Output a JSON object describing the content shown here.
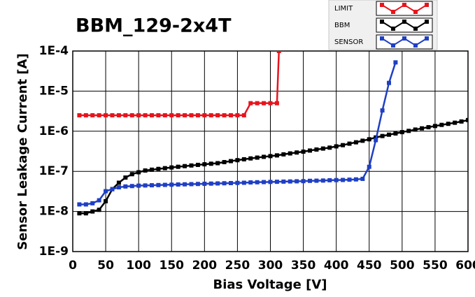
{
  "chart_data": {
    "type": "line",
    "title": "BBM_129-2x4T",
    "x_label": "Bias Voltage [V]",
    "y_label": "Sensor Leakage Current [A]",
    "log_y": true,
    "grid": true,
    "legend": "top-right",
    "xlim": [
      0,
      600
    ],
    "xticks": [
      0,
      50,
      100,
      150,
      200,
      250,
      300,
      350,
      400,
      450,
      500,
      550,
      600
    ],
    "ylim": [
      1e-09,
      0.0001
    ],
    "yticks": [
      {
        "value": 1e-09,
        "label": "1E-9"
      },
      {
        "value": 1e-08,
        "label": "1E-8"
      },
      {
        "value": 1e-07,
        "label": "1E-7"
      },
      {
        "value": 1e-06,
        "label": "1E-6"
      },
      {
        "value": 1e-05,
        "label": "1E-5"
      },
      {
        "value": 0.0001,
        "label": "1E-4"
      }
    ],
    "series": [
      {
        "name": "LIMIT",
        "color": "#e8141c",
        "x": [
          10,
          20,
          30,
          40,
          50,
          60,
          70,
          80,
          90,
          100,
          110,
          120,
          130,
          140,
          150,
          160,
          170,
          180,
          190,
          200,
          210,
          220,
          230,
          240,
          250,
          260,
          270,
          280,
          290,
          300,
          310,
          313
        ],
        "values": [
          2.5e-06,
          2.5e-06,
          2.5e-06,
          2.5e-06,
          2.5e-06,
          2.5e-06,
          2.5e-06,
          2.5e-06,
          2.5e-06,
          2.5e-06,
          2.5e-06,
          2.5e-06,
          2.5e-06,
          2.5e-06,
          2.5e-06,
          2.5e-06,
          2.5e-06,
          2.5e-06,
          2.5e-06,
          2.5e-06,
          2.5e-06,
          2.5e-06,
          2.5e-06,
          2.5e-06,
          2.5e-06,
          2.5e-06,
          5e-06,
          5e-06,
          5e-06,
          5e-06,
          5e-06,
          0.0001
        ]
      },
      {
        "name": "BBM",
        "color": "#000000",
        "x": [
          10,
          20,
          30,
          40,
          50,
          60,
          70,
          80,
          90,
          100,
          110,
          120,
          130,
          140,
          150,
          160,
          170,
          180,
          190,
          200,
          210,
          220,
          230,
          240,
          250,
          260,
          270,
          280,
          290,
          300,
          310,
          320,
          330,
          340,
          350,
          360,
          370,
          380,
          390,
          400,
          410,
          420,
          430,
          440,
          450,
          460,
          470,
          480,
          490,
          500,
          510,
          520,
          530,
          540,
          550,
          560,
          570,
          580,
          590,
          600
        ],
        "values": [
          9e-09,
          9e-09,
          1e-08,
          1.1e-08,
          1.8e-08,
          3.6e-08,
          5.2e-08,
          7e-08,
          8.5e-08,
          9.5e-08,
          1.05e-07,
          1.1e-07,
          1.15e-07,
          1.2e-07,
          1.25e-07,
          1.3e-07,
          1.35e-07,
          1.4e-07,
          1.45e-07,
          1.5e-07,
          1.55e-07,
          1.6e-07,
          1.7e-07,
          1.8e-07,
          1.9e-07,
          2e-07,
          2.1e-07,
          2.2e-07,
          2.3e-07,
          2.4e-07,
          2.5e-07,
          2.65e-07,
          2.8e-07,
          2.95e-07,
          3.1e-07,
          3.3e-07,
          3.5e-07,
          3.7e-07,
          3.9e-07,
          4.2e-07,
          4.5e-07,
          4.9e-07,
          5.3e-07,
          5.8e-07,
          6.3e-07,
          7e-07,
          7.6e-07,
          8.2e-07,
          8.8e-07,
          9.5e-07,
          1.02e-06,
          1.1e-06,
          1.18e-06,
          1.26e-06,
          1.35e-06,
          1.44e-06,
          1.53e-06,
          1.63e-06,
          1.75e-06,
          1.9e-06
        ]
      },
      {
        "name": "SENSOR",
        "color": "#1f3fc4",
        "x": [
          10,
          20,
          30,
          40,
          50,
          60,
          70,
          80,
          90,
          100,
          110,
          120,
          130,
          140,
          150,
          160,
          170,
          180,
          190,
          200,
          210,
          220,
          230,
          240,
          250,
          260,
          270,
          280,
          290,
          300,
          310,
          320,
          330,
          340,
          350,
          360,
          370,
          380,
          390,
          400,
          410,
          420,
          430,
          440,
          450,
          460,
          470,
          480,
          490
        ],
        "values": [
          1.5e-08,
          1.5e-08,
          1.6e-08,
          1.9e-08,
          3.2e-08,
          3.6e-08,
          4e-08,
          4.2e-08,
          4.3e-08,
          4.4e-08,
          4.45e-08,
          4.5e-08,
          4.55e-08,
          4.6e-08,
          4.65e-08,
          4.7e-08,
          4.75e-08,
          4.8e-08,
          4.85e-08,
          4.9e-08,
          4.95e-08,
          5e-08,
          5.05e-08,
          5.1e-08,
          5.15e-08,
          5.2e-08,
          5.3e-08,
          5.35e-08,
          5.4e-08,
          5.45e-08,
          5.5e-08,
          5.55e-08,
          5.6e-08,
          5.65e-08,
          5.7e-08,
          5.8e-08,
          5.85e-08,
          5.9e-08,
          6e-08,
          6.05e-08,
          6.1e-08,
          6.2e-08,
          6.3e-08,
          6.5e-08,
          1.3e-07,
          6e-07,
          3.3e-06,
          1.6e-05,
          5.2e-05
        ]
      }
    ]
  }
}
